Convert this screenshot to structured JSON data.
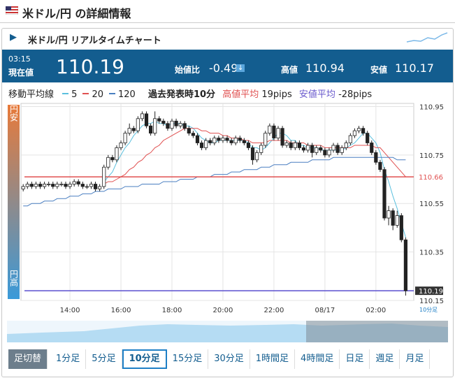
{
  "header": {
    "title": "米ドル/円 の詳細情報"
  },
  "card": {
    "title": "米ドル/円 リアルタイムチャート"
  },
  "quote": {
    "time": "03:15",
    "current_label": "現在値",
    "current": 110.19,
    "change_label": "始値比",
    "change": -0.49,
    "high_label": "高値",
    "high": 110.94,
    "low_label": "安値",
    "low": 110.17
  },
  "legend_row": {
    "ma_label": "移動平均線",
    "past_label": "過去発表時10分",
    "high_avg_label": "高値平均",
    "high_avg": "19pips",
    "low_avg_label": "安値平均",
    "low_avg": "-28pips"
  },
  "side": {
    "top": "円安",
    "bottom": "円高"
  },
  "buttons": {
    "switch": "足切替",
    "items": [
      "1分足",
      "5分足",
      "10分足",
      "15分足",
      "30分足",
      "1時間足",
      "4時間足",
      "日足",
      "週足",
      "月足"
    ],
    "active": "10分足"
  },
  "chart_data": {
    "type": "candlestick",
    "timeframe": "10分足",
    "categories": [
      null,
      null,
      null,
      null,
      null,
      null,
      null,
      null,
      null,
      null,
      null,
      "14:00",
      null,
      null,
      null,
      null,
      null,
      null,
      null,
      null,
      null,
      null,
      null,
      "16:00",
      null,
      null,
      null,
      null,
      null,
      null,
      null,
      null,
      null,
      null,
      null,
      "18:00",
      null,
      null,
      null,
      null,
      null,
      null,
      null,
      null,
      null,
      null,
      null,
      "20:00",
      null,
      null,
      null,
      null,
      null,
      null,
      null,
      null,
      null,
      null,
      null,
      "22:00",
      null,
      null,
      null,
      null,
      null,
      null,
      null,
      null,
      null,
      null,
      null,
      "08/17",
      null,
      null,
      null,
      null,
      null,
      null,
      null,
      null,
      null,
      null,
      null,
      "02:00",
      null,
      null,
      null,
      null,
      null,
      null,
      null
    ],
    "open": [
      110.61,
      110.62,
      110.63,
      110.62,
      110.63,
      110.62,
      110.63,
      110.63,
      110.62,
      110.63,
      110.63,
      110.62,
      110.63,
      110.64,
      110.63,
      110.62,
      110.62,
      110.63,
      110.61,
      110.62,
      110.7,
      110.74,
      110.73,
      110.78,
      110.8,
      110.84,
      110.86,
      110.85,
      110.9,
      110.92,
      110.87,
      110.84,
      110.9,
      110.89,
      110.88,
      110.86,
      110.89,
      110.87,
      110.88,
      110.86,
      110.84,
      110.83,
      110.8,
      110.78,
      110.81,
      110.8,
      110.82,
      110.81,
      110.82,
      110.81,
      110.8,
      110.82,
      110.81,
      110.8,
      110.78,
      110.73,
      110.76,
      110.79,
      110.84,
      110.87,
      110.82,
      110.86,
      110.79,
      110.8,
      110.78,
      110.8,
      110.78,
      110.77,
      110.79,
      110.76,
      110.78,
      110.77,
      110.75,
      110.77,
      110.79,
      110.76,
      110.78,
      110.8,
      110.83,
      110.85,
      110.86,
      110.84,
      110.8,
      110.76,
      110.72,
      110.69,
      110.49,
      110.52,
      110.46,
      110.5,
      110.4
    ],
    "high": [
      110.63,
      110.64,
      110.64,
      110.64,
      110.64,
      110.64,
      110.64,
      110.64,
      110.64,
      110.64,
      110.64,
      110.64,
      110.65,
      110.65,
      110.64,
      110.63,
      110.64,
      110.64,
      110.63,
      110.71,
      110.75,
      110.75,
      110.79,
      110.81,
      110.85,
      110.88,
      110.87,
      110.91,
      110.93,
      110.93,
      110.88,
      110.93,
      110.91,
      110.9,
      110.89,
      110.9,
      110.9,
      110.89,
      110.89,
      110.87,
      110.85,
      110.84,
      110.81,
      110.82,
      110.82,
      110.83,
      110.83,
      110.83,
      110.83,
      110.82,
      110.83,
      110.83,
      110.82,
      110.81,
      110.79,
      110.77,
      110.8,
      110.85,
      110.88,
      110.88,
      110.87,
      110.87,
      110.81,
      110.81,
      110.81,
      110.81,
      110.79,
      110.8,
      110.8,
      110.79,
      110.79,
      110.78,
      110.78,
      110.8,
      110.8,
      110.79,
      110.81,
      110.84,
      110.86,
      110.87,
      110.87,
      110.85,
      110.81,
      110.77,
      110.73,
      110.7,
      110.54,
      110.53,
      110.52,
      110.51,
      110.41
    ],
    "low": [
      110.6,
      110.61,
      110.61,
      110.61,
      110.61,
      110.61,
      110.62,
      110.61,
      110.61,
      110.62,
      110.61,
      110.61,
      110.62,
      110.62,
      110.61,
      110.61,
      110.61,
      110.6,
      110.6,
      110.61,
      110.69,
      110.72,
      110.72,
      110.77,
      110.79,
      110.83,
      110.84,
      110.84,
      110.89,
      110.86,
      110.83,
      110.83,
      110.88,
      110.87,
      110.85,
      110.85,
      110.86,
      110.86,
      110.85,
      110.83,
      110.82,
      110.79,
      110.77,
      110.77,
      110.79,
      110.79,
      110.8,
      110.8,
      110.8,
      110.79,
      110.79,
      110.8,
      110.79,
      110.77,
      110.71,
      110.72,
      110.75,
      110.78,
      110.83,
      110.81,
      110.81,
      110.78,
      110.78,
      110.77,
      110.77,
      110.77,
      110.76,
      110.76,
      110.74,
      110.75,
      110.76,
      110.74,
      110.74,
      110.76,
      110.75,
      110.75,
      110.77,
      110.79,
      110.82,
      110.84,
      110.83,
      110.79,
      110.75,
      110.71,
      110.68,
      110.48,
      110.46,
      110.44,
      110.45,
      110.39,
      110.17
    ],
    "close": [
      110.62,
      110.63,
      110.62,
      110.63,
      110.62,
      110.63,
      110.63,
      110.62,
      110.63,
      110.63,
      110.62,
      110.63,
      110.64,
      110.63,
      110.62,
      110.62,
      110.63,
      110.61,
      110.62,
      110.7,
      110.74,
      110.73,
      110.78,
      110.8,
      110.84,
      110.86,
      110.85,
      110.9,
      110.92,
      110.87,
      110.84,
      110.9,
      110.89,
      110.88,
      110.86,
      110.89,
      110.87,
      110.88,
      110.86,
      110.84,
      110.83,
      110.8,
      110.78,
      110.81,
      110.8,
      110.82,
      110.81,
      110.82,
      110.81,
      110.8,
      110.82,
      110.81,
      110.8,
      110.78,
      110.73,
      110.76,
      110.79,
      110.84,
      110.87,
      110.82,
      110.86,
      110.79,
      110.8,
      110.78,
      110.8,
      110.78,
      110.77,
      110.79,
      110.76,
      110.78,
      110.77,
      110.75,
      110.77,
      110.79,
      110.76,
      110.78,
      110.8,
      110.83,
      110.85,
      110.86,
      110.84,
      110.8,
      110.76,
      110.72,
      110.69,
      110.49,
      110.52,
      110.46,
      110.5,
      110.4,
      110.19
    ],
    "series": [
      {
        "name": "5",
        "color": "#5bc0de",
        "values": [
          null,
          null,
          null,
          null,
          null,
          null,
          null,
          null,
          null,
          null,
          null,
          null,
          null,
          null,
          null,
          null,
          null,
          null,
          null,
          110.64,
          110.66,
          110.68,
          110.72,
          110.75,
          110.78,
          110.8,
          110.83,
          110.85,
          110.87,
          110.88,
          110.88,
          110.89,
          110.88,
          110.88,
          110.87,
          110.88,
          110.88,
          110.88,
          110.87,
          110.87,
          110.86,
          110.84,
          110.82,
          110.81,
          110.8,
          110.8,
          110.81,
          110.81,
          110.81,
          110.81,
          110.81,
          110.81,
          110.81,
          110.8,
          110.78,
          110.78,
          110.77,
          110.78,
          110.8,
          110.82,
          110.84,
          110.84,
          110.83,
          110.81,
          110.81,
          110.79,
          110.79,
          110.78,
          110.78,
          110.78,
          110.77,
          110.77,
          110.77,
          110.77,
          110.77,
          110.77,
          110.78,
          110.79,
          110.8,
          110.82,
          110.84,
          110.84,
          110.82,
          110.8,
          110.76,
          110.69,
          110.64,
          110.58,
          110.53,
          110.47,
          110.41
        ]
      },
      {
        "name": "20",
        "color": "#e05050",
        "values": [
          null,
          null,
          null,
          null,
          null,
          null,
          null,
          null,
          null,
          null,
          null,
          null,
          null,
          null,
          null,
          null,
          null,
          null,
          null,
          110.63,
          110.64,
          110.64,
          110.65,
          110.66,
          110.67,
          110.69,
          110.7,
          110.72,
          110.73,
          110.75,
          110.76,
          110.78,
          110.79,
          110.81,
          110.82,
          110.83,
          110.84,
          110.85,
          110.86,
          110.86,
          110.86,
          110.86,
          110.85,
          110.85,
          110.84,
          110.84,
          110.84,
          110.83,
          110.83,
          110.82,
          110.82,
          110.82,
          110.81,
          110.81,
          110.8,
          110.8,
          110.8,
          110.8,
          110.81,
          110.81,
          110.81,
          110.81,
          110.81,
          110.8,
          110.8,
          110.8,
          110.8,
          110.79,
          110.79,
          110.79,
          110.79,
          110.78,
          110.78,
          110.78,
          110.78,
          110.78,
          110.78,
          110.78,
          110.79,
          110.79,
          110.79,
          110.79,
          110.79,
          110.78,
          110.78,
          110.76,
          110.74,
          110.72,
          110.7,
          110.68,
          110.66
        ]
      },
      {
        "name": "120",
        "color": "#4a7fc1",
        "values": [
          110.54,
          110.54,
          110.55,
          110.55,
          110.55,
          110.56,
          110.56,
          110.56,
          110.57,
          110.57,
          110.57,
          110.58,
          110.58,
          110.58,
          110.59,
          110.59,
          110.59,
          110.6,
          110.6,
          110.6,
          110.61,
          110.61,
          110.61,
          110.61,
          110.62,
          110.62,
          110.62,
          110.62,
          110.63,
          110.63,
          110.63,
          110.63,
          110.63,
          110.64,
          110.64,
          110.64,
          110.64,
          110.65,
          110.65,
          110.65,
          110.65,
          110.66,
          110.66,
          110.66,
          110.66,
          110.67,
          110.67,
          110.67,
          110.67,
          110.68,
          110.68,
          110.68,
          110.69,
          110.69,
          110.69,
          110.69,
          110.7,
          110.7,
          110.7,
          110.71,
          110.71,
          110.71,
          110.71,
          110.72,
          110.72,
          110.72,
          110.72,
          110.72,
          110.73,
          110.73,
          110.73,
          110.73,
          110.73,
          110.74,
          110.74,
          110.74,
          110.74,
          110.74,
          110.74,
          110.74,
          110.74,
          110.74,
          110.74,
          110.74,
          110.74,
          110.74,
          110.74,
          110.74,
          110.73,
          110.73,
          110.73
        ]
      }
    ],
    "reference_lines": [
      {
        "value": 110.66,
        "color": "#e05050"
      },
      {
        "value": 110.19,
        "color": "#5a4fcf"
      }
    ],
    "ylim": [
      110.15,
      110.96
    ],
    "yticks": [
      110.95,
      110.75,
      110.55,
      110.35,
      110.15
    ],
    "grid": true
  }
}
